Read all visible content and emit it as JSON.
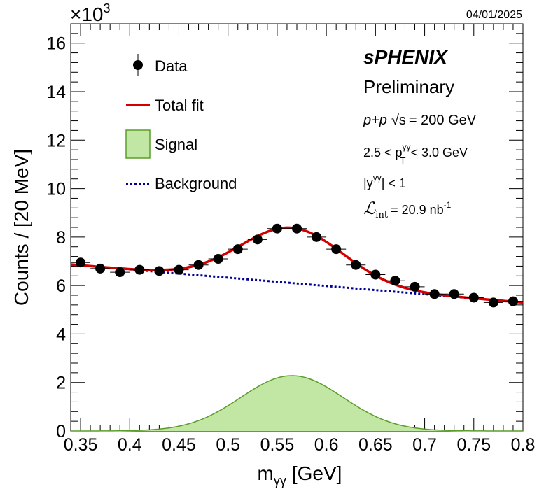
{
  "date_stamp": "04/01/2025",
  "experiment": {
    "name": "sPHENIX",
    "status": "Preliminary",
    "collision": "p+p",
    "energy_prefix": "√s",
    "energy_value": "= 200 GeV",
    "pt_left": "2.5 < p",
    "pt_sup": "γγ",
    "pt_sub": "T",
    "pt_right": "< 3.0 GeV",
    "y_left": "|y",
    "y_sup": "γγ",
    "y_right": "| < 1",
    "lumi_symbol": "ℒ",
    "lumi_sub": "int",
    "lumi_value": "= 20.9 nb",
    "lumi_sup": "-1"
  },
  "axes": {
    "exponent_base": "×10",
    "exponent_power": "3",
    "ylabel": "Counts / [20 MeV]",
    "xlabel_main": "m",
    "xlabel_sub": "γγ",
    "xlabel_unit": "[GeV]"
  },
  "legend": {
    "placement": "top-left",
    "items": [
      {
        "label": "Data"
      },
      {
        "label": "Total fit"
      },
      {
        "label": "Signal"
      },
      {
        "label": "Background"
      }
    ]
  },
  "colors": {
    "data": "#000000",
    "total_fit": "#d40000",
    "signal_fill": "#c2e6a3",
    "signal_line": "#5a9e2a",
    "background": "#000099"
  },
  "chart_data": {
    "type": "scatter",
    "xlim": [
      0.34,
      0.8
    ],
    "ylim": [
      0,
      16.8
    ],
    "x_ticks": [
      {
        "v": 0.35,
        "label": "0.35"
      },
      {
        "v": 0.4,
        "label": "0.4"
      },
      {
        "v": 0.45,
        "label": "0.45"
      },
      {
        "v": 0.5,
        "label": "0.5"
      },
      {
        "v": 0.55,
        "label": "0.55"
      },
      {
        "v": 0.6,
        "label": "0.6"
      },
      {
        "v": 0.65,
        "label": "0.65"
      },
      {
        "v": 0.7,
        "label": "0.7"
      },
      {
        "v": 0.75,
        "label": "0.75"
      },
      {
        "v": 0.8,
        "label": "0.8"
      }
    ],
    "y_ticks": [
      {
        "v": 0,
        "label": "0"
      },
      {
        "v": 2,
        "label": "2"
      },
      {
        "v": 4,
        "label": "4"
      },
      {
        "v": 6,
        "label": "6"
      },
      {
        "v": 8,
        "label": "8"
      },
      {
        "v": 10,
        "label": "10"
      },
      {
        "v": 12,
        "label": "12"
      },
      {
        "v": 14,
        "label": "14"
      },
      {
        "v": 16,
        "label": "16"
      }
    ],
    "series": [
      {
        "name": "Data",
        "x": [
          0.35,
          0.37,
          0.39,
          0.41,
          0.43,
          0.45,
          0.47,
          0.49,
          0.51,
          0.53,
          0.55,
          0.57,
          0.59,
          0.61,
          0.63,
          0.65,
          0.67,
          0.69,
          0.71,
          0.73,
          0.75,
          0.77,
          0.79
        ],
        "y": [
          6.95,
          6.7,
          6.55,
          6.65,
          6.6,
          6.65,
          6.85,
          7.1,
          7.5,
          7.9,
          8.35,
          8.35,
          8.0,
          7.5,
          6.85,
          6.45,
          6.2,
          5.95,
          5.65,
          5.65,
          5.5,
          5.3,
          5.35
        ],
        "x_err": 0.01,
        "y_err": 0.08
      }
    ],
    "fit": {
      "background": {
        "x": [
          0.34,
          0.8
        ],
        "y": [
          6.87,
          5.3
        ]
      },
      "signal": {
        "amplitude": 2.28,
        "mean": 0.565,
        "sigma": 0.052
      },
      "x_range": [
        0.34,
        0.8
      ]
    }
  }
}
